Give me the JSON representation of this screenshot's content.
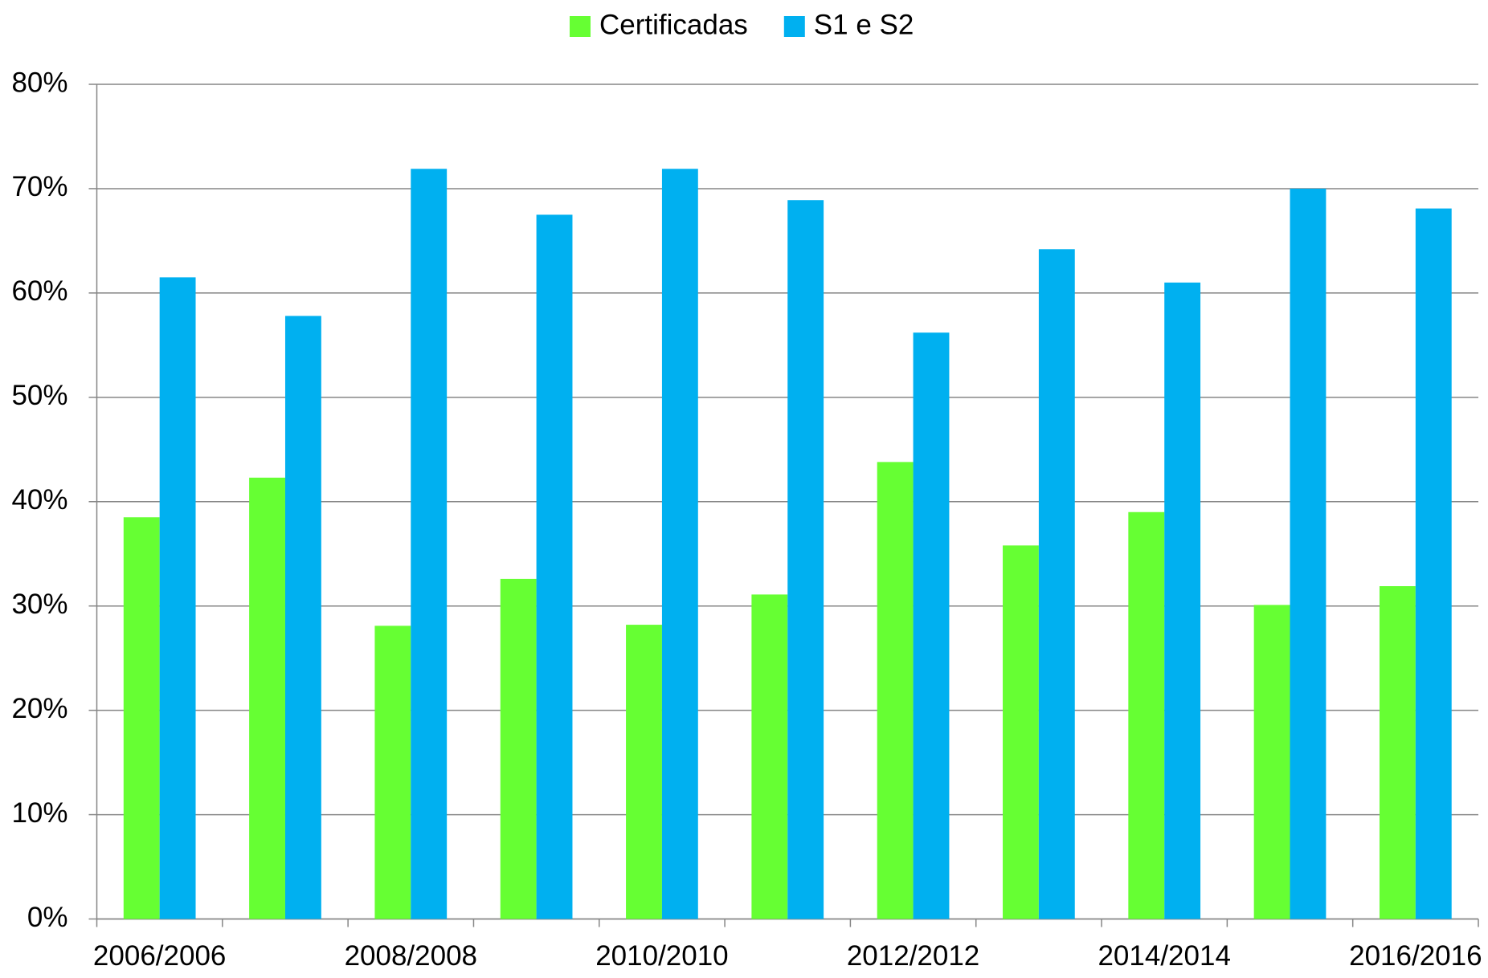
{
  "chart_data": {
    "type": "bar",
    "categories": [
      "2006/2006",
      null,
      "2008/2008",
      null,
      "2010/2010",
      null,
      "2012/2012",
      null,
      "2014/2014",
      null,
      "2016/2016"
    ],
    "series": [
      {
        "name": "Certificadas",
        "color": "#66ff33",
        "values": [
          38.5,
          42.3,
          28.1,
          32.6,
          28.2,
          31.1,
          43.8,
          35.8,
          39.0,
          30.1,
          31.9
        ]
      },
      {
        "name": "S1 e S2",
        "color": "#00b0f0",
        "values": [
          61.5,
          57.8,
          71.9,
          67.5,
          71.9,
          68.9,
          56.2,
          64.2,
          61.0,
          70.0,
          68.1
        ]
      }
    ],
    "ylim": [
      0,
      80
    ],
    "yticks": [
      {
        "value": 0,
        "label": "0%"
      },
      {
        "value": 10,
        "label": "10%"
      },
      {
        "value": 20,
        "label": "20%"
      },
      {
        "value": 30,
        "label": "30%"
      },
      {
        "value": 40,
        "label": "40%"
      },
      {
        "value": 50,
        "label": "50%"
      },
      {
        "value": 60,
        "label": "60%"
      },
      {
        "value": 70,
        "label": "70%"
      },
      {
        "value": 80,
        "label": "80%"
      }
    ],
    "grid": true,
    "legend": "top"
  }
}
